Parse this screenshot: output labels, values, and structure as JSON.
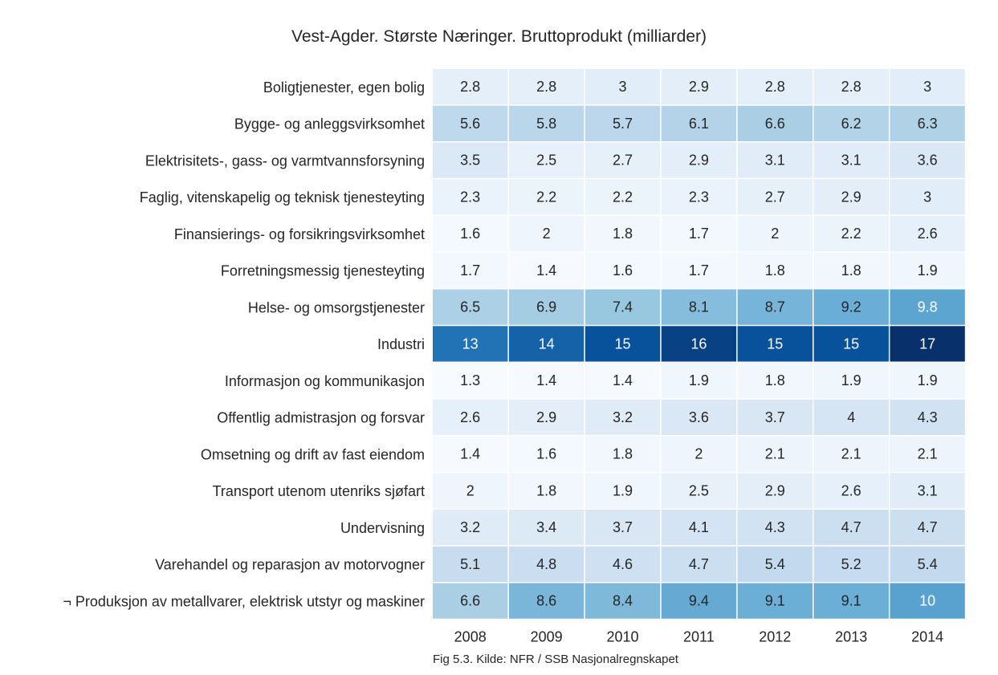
{
  "chart_data": {
    "type": "heatmap",
    "title": "Vest-Agder. Største Næringer. Bruttoprodukt (milliarder)",
    "caption": "Fig 5.3. Kilde: NFR / SSB Nasjonalregnskapet",
    "colormap": "Blues",
    "color_low": "#f7fbff",
    "color_high": "#08306b",
    "x": [
      "2008",
      "2009",
      "2010",
      "2011",
      "2012",
      "2013",
      "2014"
    ],
    "y": [
      "Boligtjenester, egen bolig",
      "Bygge- og anleggsvirksomhet",
      "Elektrisitets-, gass- og varmtvannsforsyning",
      "Faglig, vitenskapelig og teknisk tjenesteyting",
      "Finansierings- og forsikringsvirksomhet",
      "Forretningsmessig tjenesteyting",
      "Helse- og omsorgstjenester",
      "Industri",
      "Informasjon og kommunikasjon",
      "Offentlig admistrasjon og forsvar",
      "Omsetning og drift av fast eiendom",
      "Transport utenom utenriks sjøfart",
      "Undervisning",
      "Varehandel og reparasjon av motorvogner",
      "¬ Produksjon av metallvarer, elektrisk utstyr og maskiner"
    ],
    "values": [
      [
        2.8,
        2.8,
        3,
        2.9,
        2.8,
        2.8,
        3
      ],
      [
        5.6,
        5.8,
        5.7,
        6.1,
        6.6,
        6.2,
        6.3
      ],
      [
        3.5,
        2.5,
        2.7,
        2.9,
        3.1,
        3.1,
        3.6
      ],
      [
        2.3,
        2.2,
        2.2,
        2.3,
        2.7,
        2.9,
        3
      ],
      [
        1.6,
        2,
        1.8,
        1.7,
        2,
        2.2,
        2.6
      ],
      [
        1.7,
        1.4,
        1.6,
        1.7,
        1.8,
        1.8,
        1.9
      ],
      [
        6.5,
        6.9,
        7.4,
        8.1,
        8.7,
        9.2,
        9.8
      ],
      [
        13,
        14,
        15,
        16,
        15,
        15,
        17
      ],
      [
        1.3,
        1.4,
        1.4,
        1.9,
        1.8,
        1.9,
        1.9
      ],
      [
        2.6,
        2.9,
        3.2,
        3.6,
        3.7,
        4,
        4.3
      ],
      [
        1.4,
        1.6,
        1.8,
        2,
        2.1,
        2.1,
        2.1
      ],
      [
        2,
        1.8,
        1.9,
        2.5,
        2.9,
        2.6,
        3.1
      ],
      [
        3.2,
        3.4,
        3.7,
        4.1,
        4.3,
        4.7,
        4.7
      ],
      [
        5.1,
        4.8,
        4.6,
        4.7,
        5.4,
        5.2,
        5.4
      ],
      [
        6.6,
        8.6,
        8.4,
        9.4,
        9.1,
        9.1,
        10
      ]
    ],
    "vmin": 1.3,
    "vmax": 17,
    "legend": "none"
  }
}
